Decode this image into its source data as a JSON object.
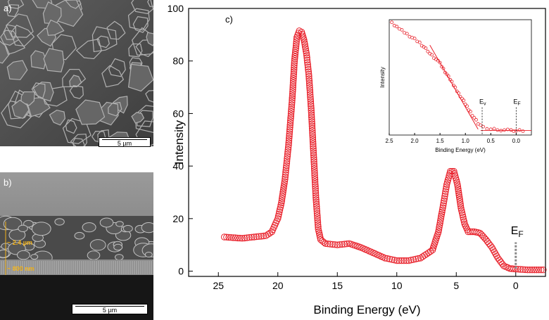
{
  "panel_a": {
    "label": "a)",
    "scale_bar": "5 µm"
  },
  "panel_b": {
    "label": "b)",
    "scale_bar": "5 µm",
    "thickness_top": "~ 2.4 µm",
    "thickness_bottom": "~ 800 nm"
  },
  "panel_c": {
    "label": "c)"
  },
  "colors": {
    "data": "#e8202a",
    "axis": "#000000",
    "fermi_marker": "#888888"
  },
  "chart_data": [
    {
      "type": "scatter",
      "xlabel": "Binding Energy (eV)",
      "ylabel": "Intensity",
      "xlim": [
        27.5,
        -2.5
      ],
      "ylim": [
        -2,
        100
      ],
      "xticks": [
        25,
        20,
        15,
        10,
        5,
        0
      ],
      "yticks": [
        0,
        20,
        40,
        60,
        80,
        100
      ],
      "annotation": {
        "text": "E",
        "subscript": "F",
        "x": 0
      },
      "x_reversed": true,
      "curve": [
        [
          24.5,
          13
        ],
        [
          23,
          12.5
        ],
        [
          22,
          13
        ],
        [
          21,
          13.5
        ],
        [
          20.5,
          15
        ],
        [
          20,
          20
        ],
        [
          19.7,
          26
        ],
        [
          19.4,
          35
        ],
        [
          19.1,
          48
        ],
        [
          18.8,
          65
        ],
        [
          18.6,
          80
        ],
        [
          18.4,
          89
        ],
        [
          18.2,
          91.5
        ],
        [
          18.0,
          91
        ],
        [
          17.8,
          88
        ],
        [
          17.6,
          83
        ],
        [
          17.4,
          75
        ],
        [
          17.2,
          62
        ],
        [
          17.0,
          45
        ],
        [
          16.8,
          28
        ],
        [
          16.6,
          16
        ],
        [
          16.4,
          12
        ],
        [
          16,
          10.5
        ],
        [
          15,
          10
        ],
        [
          14,
          10.5
        ],
        [
          13,
          9
        ],
        [
          12,
          7
        ],
        [
          11,
          5
        ],
        [
          10,
          4
        ],
        [
          9,
          4
        ],
        [
          8,
          5
        ],
        [
          7,
          8
        ],
        [
          6.5,
          15
        ],
        [
          6.1,
          25
        ],
        [
          5.8,
          33
        ],
        [
          5.5,
          38
        ],
        [
          5.2,
          38
        ],
        [
          4.9,
          33
        ],
        [
          4.6,
          24
        ],
        [
          4.3,
          18
        ],
        [
          4.0,
          15
        ],
        [
          3.5,
          15
        ],
        [
          3.0,
          14.5
        ],
        [
          2.5,
          12
        ],
        [
          2.0,
          9
        ],
        [
          1.5,
          5
        ],
        [
          1.0,
          2
        ],
        [
          0.5,
          1
        ],
        [
          0,
          0.8
        ],
        [
          -1,
          0.5
        ],
        [
          -2.5,
          0.5
        ]
      ]
    },
    {
      "type": "scatter",
      "xlabel": "Binding Energy (eV)",
      "ylabel": "Intensity",
      "xlim": [
        2.5,
        -0.3
      ],
      "ylim": [
        0,
        1
      ],
      "xticks": [
        2.5,
        2.0,
        1.5,
        1.0,
        0.5,
        0.0
      ],
      "annotations": [
        {
          "text": "E",
          "subscript": "v",
          "x": 0.67
        },
        {
          "text": "E",
          "subscript": "F",
          "x": 0.0
        }
      ],
      "curve": [
        [
          2.45,
          0.97
        ],
        [
          2.3,
          0.92
        ],
        [
          2.1,
          0.86
        ],
        [
          1.9,
          0.8
        ],
        [
          1.7,
          0.71
        ],
        [
          1.5,
          0.62
        ],
        [
          1.3,
          0.48
        ],
        [
          1.1,
          0.34
        ],
        [
          0.9,
          0.2
        ],
        [
          0.75,
          0.1
        ],
        [
          0.65,
          0.065
        ],
        [
          0.5,
          0.05
        ],
        [
          0.3,
          0.045
        ],
        [
          0.1,
          0.04
        ],
        [
          0.0,
          0.04
        ],
        [
          -0.2,
          0.04
        ]
      ],
      "fit_line": [
        [
          1.7,
          0.78
        ],
        [
          0.75,
          0.05
        ]
      ]
    }
  ]
}
